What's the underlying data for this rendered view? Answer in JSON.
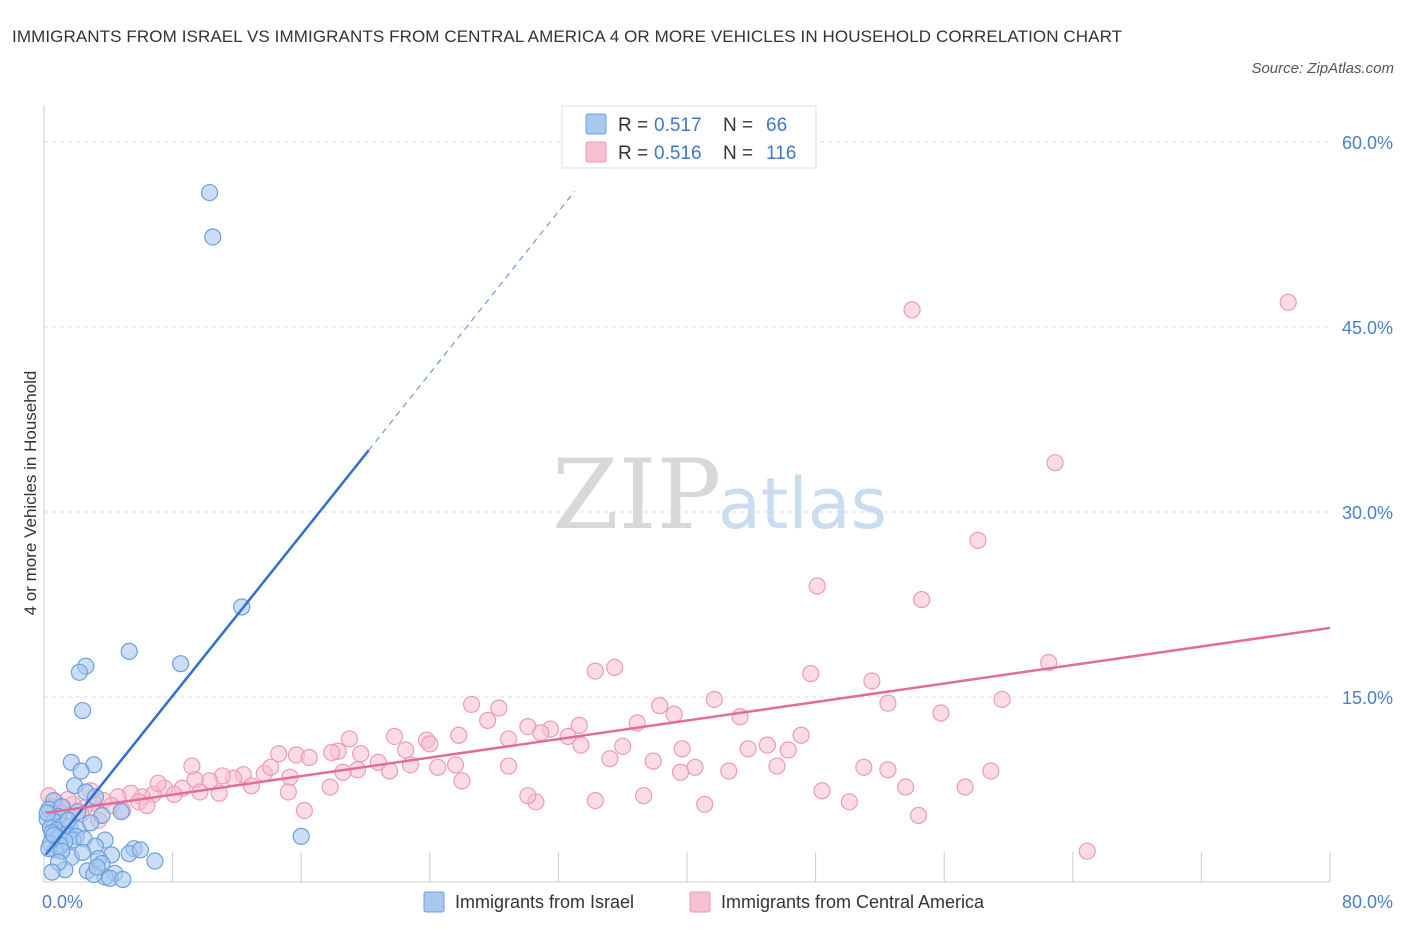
{
  "title": "IMMIGRANTS FROM ISRAEL VS IMMIGRANTS FROM CENTRAL AMERICA 4 OR MORE VEHICLES IN HOUSEHOLD CORRELATION CHART",
  "source": "Source: ZipAtlas.com",
  "watermark": {
    "zip": "ZIP",
    "atlas": "atlas"
  },
  "colors": {
    "israel_fill": "#a9c8ef",
    "israel_stroke": "#6d9fdc",
    "israel_line": "#2f6fcf",
    "ca_fill": "#f7bfd1",
    "ca_stroke": "#ee9ab6",
    "ca_line": "#e56b97",
    "tick": "#4a7fcb",
    "grid": "#dddddd"
  },
  "legend": {
    "rows": [
      {
        "r_label": "R = ",
        "r_value": "0.517",
        "n_label": "N = ",
        "n_value": "66"
      },
      {
        "r_label": "R = ",
        "r_value": "0.516",
        "n_label": "N = ",
        "n_value": "116"
      }
    ]
  },
  "chart_data": {
    "type": "scatter",
    "ylabel": "4 or more Vehicles in Household",
    "xlim": [
      0,
      80
    ],
    "ylim": [
      0,
      63
    ],
    "x_ticks": [
      0,
      8,
      16,
      24,
      32,
      40,
      48,
      56,
      64,
      72,
      80
    ],
    "x_tick_labels": [
      {
        "value": 0,
        "label": "0.0%"
      },
      {
        "value": 80,
        "label": "80.0%"
      }
    ],
    "y_ticks": [
      {
        "value": 15,
        "label": "15.0%"
      },
      {
        "value": 30,
        "label": "30.0%"
      },
      {
        "value": 45,
        "label": "45.0%"
      },
      {
        "value": 60,
        "label": "60.0%"
      }
    ],
    "grid": true,
    "legend_position": "top-center",
    "series": [
      {
        "name": "Immigrants from Israel",
        "trendline": {
          "x0": 0.1,
          "y0": 2.2,
          "x1": 20.2,
          "y1": 35.0,
          "dash_to_x": 33.0,
          "dash_to_y": 56.0
        },
        "points": [
          [
            10.3,
            55.9
          ],
          [
            10.5,
            52.3
          ],
          [
            12.3,
            22.3
          ],
          [
            5.3,
            18.7
          ],
          [
            8.5,
            17.7
          ],
          [
            2.6,
            17.5
          ],
          [
            2.2,
            17.0
          ],
          [
            2.4,
            13.9
          ],
          [
            1.7,
            9.7
          ],
          [
            3.1,
            9.5
          ],
          [
            2.3,
            9.0
          ],
          [
            1.9,
            7.8
          ],
          [
            2.6,
            7.3
          ],
          [
            3.2,
            6.9
          ],
          [
            0.6,
            6.6
          ],
          [
            0.3,
            5.9
          ],
          [
            1.1,
            6.1
          ],
          [
            2.1,
            5.7
          ],
          [
            0.9,
            5.3
          ],
          [
            3.6,
            5.4
          ],
          [
            4.8,
            5.7
          ],
          [
            0.2,
            5.1
          ],
          [
            0.6,
            4.9
          ],
          [
            1.2,
            4.6
          ],
          [
            0.4,
            4.4
          ],
          [
            0.8,
            4.2
          ],
          [
            1.6,
            4.5
          ],
          [
            2.1,
            4.3
          ],
          [
            0.5,
            4.0
          ],
          [
            1.4,
            3.9
          ],
          [
            2.0,
            3.7
          ],
          [
            1.8,
            3.4
          ],
          [
            0.9,
            3.6
          ],
          [
            1.3,
            3.3
          ],
          [
            2.5,
            3.5
          ],
          [
            0.4,
            3.1
          ],
          [
            1.0,
            3.0
          ],
          [
            3.8,
            3.4
          ],
          [
            0.7,
            2.6
          ],
          [
            5.6,
            2.7
          ],
          [
            3.2,
            2.9
          ],
          [
            1.7,
            2.0
          ],
          [
            4.2,
            2.2
          ],
          [
            5.3,
            2.3
          ],
          [
            6.0,
            2.6
          ],
          [
            3.4,
            1.9
          ],
          [
            6.9,
            1.7
          ],
          [
            3.6,
            1.5
          ],
          [
            1.3,
            1.0
          ],
          [
            2.7,
            0.9
          ],
          [
            4.4,
            0.7
          ],
          [
            3.8,
            0.4
          ],
          [
            3.1,
            0.6
          ],
          [
            4.1,
            0.3
          ],
          [
            4.9,
            0.2
          ],
          [
            16.0,
            3.7
          ],
          [
            0.3,
            2.7
          ],
          [
            0.2,
            5.6
          ],
          [
            1.5,
            5.0
          ],
          [
            2.9,
            4.8
          ],
          [
            0.6,
            3.8
          ],
          [
            1.1,
            2.5
          ],
          [
            2.4,
            2.4
          ],
          [
            0.9,
            1.6
          ],
          [
            3.3,
            1.2
          ],
          [
            0.5,
            0.8
          ]
        ]
      },
      {
        "name": "Immigrants from Central America",
        "trendline": {
          "x0": 0.1,
          "y0": 5.6,
          "x1": 80.0,
          "y1": 20.6
        },
        "points": [
          [
            77.4,
            47.0
          ],
          [
            54.0,
            46.4
          ],
          [
            62.9,
            34.0
          ],
          [
            58.1,
            27.7
          ],
          [
            48.1,
            24.0
          ],
          [
            54.6,
            22.9
          ],
          [
            59.6,
            14.8
          ],
          [
            62.5,
            17.8
          ],
          [
            34.3,
            17.1
          ],
          [
            35.5,
            17.4
          ],
          [
            47.7,
            16.9
          ],
          [
            51.5,
            16.3
          ],
          [
            52.5,
            14.5
          ],
          [
            55.8,
            13.7
          ],
          [
            26.6,
            14.4
          ],
          [
            28.3,
            14.1
          ],
          [
            38.3,
            14.3
          ],
          [
            41.7,
            14.8
          ],
          [
            39.2,
            13.6
          ],
          [
            43.3,
            13.4
          ],
          [
            27.6,
            13.1
          ],
          [
            30.1,
            12.6
          ],
          [
            31.5,
            12.4
          ],
          [
            33.3,
            12.7
          ],
          [
            32.6,
            11.8
          ],
          [
            19.0,
            11.6
          ],
          [
            21.8,
            11.8
          ],
          [
            23.8,
            11.5
          ],
          [
            25.8,
            11.9
          ],
          [
            36.9,
            12.9
          ],
          [
            47.1,
            11.9
          ],
          [
            28.9,
            11.6
          ],
          [
            30.9,
            12.1
          ],
          [
            18.3,
            10.6
          ],
          [
            19.7,
            10.4
          ],
          [
            22.5,
            10.7
          ],
          [
            24.0,
            11.2
          ],
          [
            33.4,
            11.1
          ],
          [
            35.2,
            10.0
          ],
          [
            36.0,
            11.0
          ],
          [
            39.7,
            10.8
          ],
          [
            43.8,
            10.8
          ],
          [
            45.0,
            11.1
          ],
          [
            46.3,
            10.7
          ],
          [
            14.6,
            10.4
          ],
          [
            15.7,
            10.3
          ],
          [
            16.5,
            10.1
          ],
          [
            17.9,
            10.5
          ],
          [
            20.8,
            9.7
          ],
          [
            22.8,
            9.5
          ],
          [
            24.5,
            9.3
          ],
          [
            25.6,
            9.5
          ],
          [
            28.9,
            9.4
          ],
          [
            37.9,
            9.8
          ],
          [
            40.5,
            9.3
          ],
          [
            42.6,
            9.0
          ],
          [
            51.0,
            9.3
          ],
          [
            52.5,
            9.1
          ],
          [
            58.9,
            9.0
          ],
          [
            19.5,
            9.1
          ],
          [
            18.6,
            8.9
          ],
          [
            13.7,
            8.8
          ],
          [
            14.1,
            9.3
          ],
          [
            15.3,
            8.5
          ],
          [
            12.4,
            8.7
          ],
          [
            11.8,
            8.4
          ],
          [
            11.1,
            8.6
          ],
          [
            10.3,
            8.2
          ],
          [
            9.4,
            8.3
          ],
          [
            8.6,
            7.6
          ],
          [
            9.7,
            7.3
          ],
          [
            7.5,
            7.6
          ],
          [
            8.1,
            7.1
          ],
          [
            6.8,
            7.1
          ],
          [
            6.1,
            6.9
          ],
          [
            5.4,
            7.2
          ],
          [
            5.9,
            6.5
          ],
          [
            4.6,
            6.9
          ],
          [
            3.7,
            6.6
          ],
          [
            4.2,
            6.2
          ],
          [
            3.1,
            6.4
          ],
          [
            2.5,
            6.0
          ],
          [
            1.8,
            6.3
          ],
          [
            1.2,
            6.0
          ],
          [
            0.7,
            6.5
          ],
          [
            0.3,
            7.0
          ],
          [
            0.5,
            6.1
          ],
          [
            1.5,
            6.7
          ],
          [
            2.3,
            5.5
          ],
          [
            4.9,
            5.8
          ],
          [
            3.4,
            5.0
          ],
          [
            17.8,
            7.7
          ],
          [
            30.6,
            6.5
          ],
          [
            30.1,
            7.0
          ],
          [
            34.3,
            6.6
          ],
          [
            37.3,
            7.0
          ],
          [
            39.6,
            8.9
          ],
          [
            41.1,
            6.3
          ],
          [
            45.6,
            9.4
          ],
          [
            48.4,
            7.4
          ],
          [
            50.1,
            6.5
          ],
          [
            53.6,
            7.7
          ],
          [
            57.3,
            7.7
          ],
          [
            54.4,
            5.4
          ],
          [
            64.9,
            2.5
          ],
          [
            16.2,
            5.8
          ],
          [
            15.2,
            7.3
          ],
          [
            21.5,
            9.0
          ],
          [
            26.0,
            8.2
          ],
          [
            12.9,
            7.8
          ],
          [
            9.2,
            9.4
          ],
          [
            10.9,
            7.2
          ],
          [
            7.1,
            8.0
          ],
          [
            6.4,
            6.2
          ],
          [
            2.9,
            7.4
          ],
          [
            1.0,
            5.6
          ]
        ]
      }
    ]
  },
  "bottom_legend": [
    {
      "label": "Immigrants from Israel"
    },
    {
      "label": "Immigrants from Central America"
    }
  ]
}
